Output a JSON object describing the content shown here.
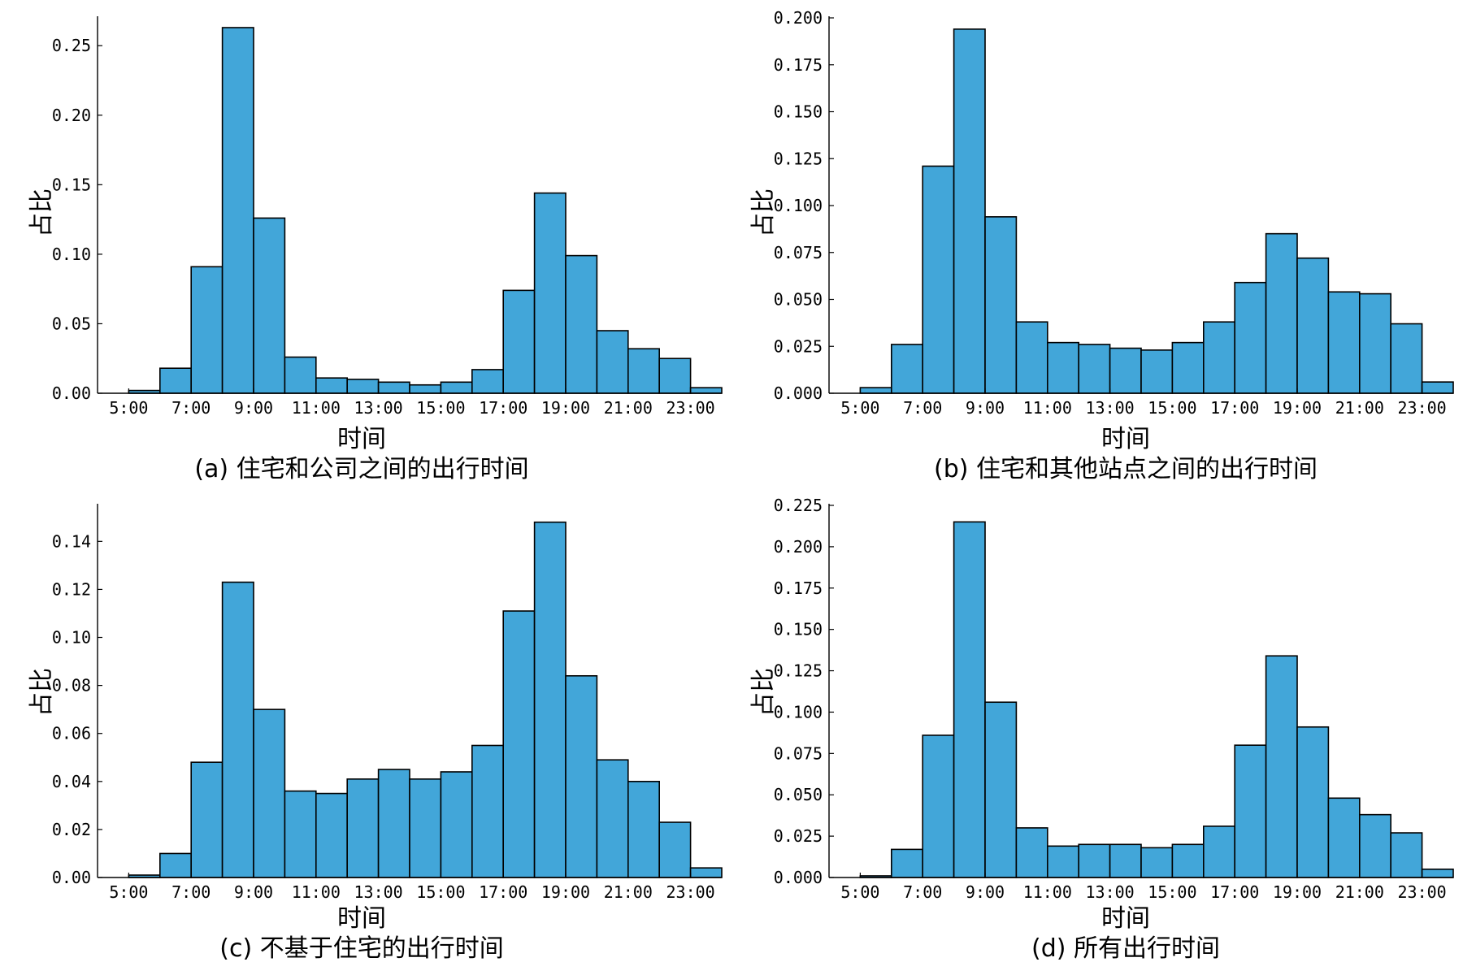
{
  "style": {
    "bar_color": "#42a6d9",
    "edge_color": "#000000"
  },
  "chart_data": [
    {
      "type": "bar",
      "caption": "(a) 住宅和公司之间的出行时间",
      "xlabel": "时间",
      "ylabel": "占比",
      "x_ticks": [
        "5:00",
        "7:00",
        "9:00",
        "11:00",
        "13:00",
        "15:00",
        "17:00",
        "19:00",
        "21:00",
        "23:00"
      ],
      "y_ticks": [
        "0.00",
        "0.05",
        "0.10",
        "0.15",
        "0.20",
        "0.25"
      ],
      "ylim": [
        0,
        0.27
      ],
      "bin_edges_hours": [
        5,
        6,
        7,
        8,
        9,
        10,
        11,
        12,
        13,
        14,
        15,
        16,
        17,
        18,
        19,
        20,
        21,
        22,
        23,
        24
      ],
      "values": [
        0.002,
        0.018,
        0.091,
        0.263,
        0.126,
        0.026,
        0.011,
        0.01,
        0.008,
        0.006,
        0.008,
        0.017,
        0.074,
        0.144,
        0.099,
        0.045,
        0.032,
        0.025,
        0.004
      ]
    },
    {
      "type": "bar",
      "caption": "(b) 住宅和其他站点之间的出行时间",
      "xlabel": "时间",
      "ylabel": "占比",
      "x_ticks": [
        "5:00",
        "7:00",
        "9:00",
        "11:00",
        "13:00",
        "15:00",
        "17:00",
        "19:00",
        "21:00",
        "23:00"
      ],
      "y_ticks": [
        "0.000",
        "0.025",
        "0.050",
        "0.075",
        "0.100",
        "0.125",
        "0.150",
        "0.175",
        "0.200"
      ],
      "ylim": [
        0,
        0.2
      ],
      "bin_edges_hours": [
        5,
        6,
        7,
        8,
        9,
        10,
        11,
        12,
        13,
        14,
        15,
        16,
        17,
        18,
        19,
        20,
        21,
        22,
        23,
        24
      ],
      "values": [
        0.003,
        0.026,
        0.121,
        0.194,
        0.094,
        0.038,
        0.027,
        0.026,
        0.024,
        0.023,
        0.027,
        0.038,
        0.059,
        0.085,
        0.072,
        0.054,
        0.053,
        0.037,
        0.006
      ]
    },
    {
      "type": "bar",
      "caption": "(c) 不基于住宅的出行时间",
      "xlabel": "时间",
      "ylabel": "占比",
      "x_ticks": [
        "5:00",
        "7:00",
        "9:00",
        "11:00",
        "13:00",
        "15:00",
        "17:00",
        "19:00",
        "21:00",
        "23:00"
      ],
      "y_ticks": [
        "0.00",
        "0.02",
        "0.04",
        "0.06",
        "0.08",
        "0.10",
        "0.12",
        "0.14"
      ],
      "ylim": [
        0,
        0.155
      ],
      "bin_edges_hours": [
        5,
        6,
        7,
        8,
        9,
        10,
        11,
        12,
        13,
        14,
        15,
        16,
        17,
        18,
        19,
        20,
        21,
        22,
        23,
        24
      ],
      "values": [
        0.001,
        0.01,
        0.048,
        0.123,
        0.07,
        0.036,
        0.035,
        0.041,
        0.045,
        0.041,
        0.044,
        0.055,
        0.111,
        0.148,
        0.084,
        0.049,
        0.04,
        0.023,
        0.004
      ]
    },
    {
      "type": "bar",
      "caption": "(d) 所有出行时间",
      "xlabel": "时间",
      "ylabel": "占比",
      "x_ticks": [
        "5:00",
        "7:00",
        "9:00",
        "11:00",
        "13:00",
        "15:00",
        "17:00",
        "19:00",
        "21:00",
        "23:00"
      ],
      "y_ticks": [
        "0.000",
        "0.025",
        "0.050",
        "0.075",
        "0.100",
        "0.125",
        "0.150",
        "0.175",
        "0.200",
        "0.225"
      ],
      "ylim": [
        0,
        0.225
      ],
      "bin_edges_hours": [
        5,
        6,
        7,
        8,
        9,
        10,
        11,
        12,
        13,
        14,
        15,
        16,
        17,
        18,
        19,
        20,
        21,
        22,
        23,
        24
      ],
      "values": [
        0.001,
        0.017,
        0.086,
        0.215,
        0.106,
        0.03,
        0.019,
        0.02,
        0.02,
        0.018,
        0.02,
        0.031,
        0.08,
        0.134,
        0.091,
        0.048,
        0.038,
        0.027,
        0.005
      ]
    }
  ]
}
